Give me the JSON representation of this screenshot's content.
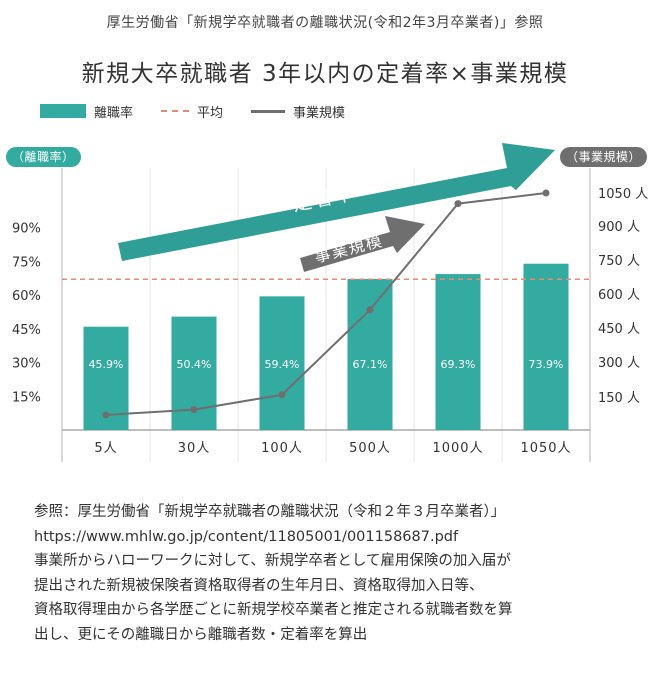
{
  "header": {
    "source_line": "厚生労働省「新規学卒就職者の離職状況(令和2年3月卒業者)」参照",
    "title": "新規大卒就職者 3年以内の定着率×事業規模"
  },
  "legend": {
    "items": [
      {
        "label": "離職率",
        "kind": "bar"
      },
      {
        "label": "平均",
        "kind": "dash"
      },
      {
        "label": "事業規模",
        "kind": "line"
      }
    ]
  },
  "axis_badges": {
    "left": "（離職率）",
    "right": "（事業規模）"
  },
  "colors": {
    "bar": "#33aba0",
    "arrow_teal": "#2f9e96",
    "line": "#6f6f6f",
    "average": "#e38b77",
    "badge_left": "#33aba0",
    "badge_right": "#6f6f6f"
  },
  "arrows": {
    "big_label": "定着率",
    "small_label": "事業規模"
  },
  "chart_data": {
    "type": "bar",
    "categories": [
      "5人",
      "30人",
      "100人",
      "500人",
      "1000人",
      "1050人"
    ],
    "series": [
      {
        "name": "離職率",
        "type": "bar",
        "axis": "left",
        "values": [
          45.9,
          50.4,
          59.4,
          67.1,
          69.3,
          73.9
        ],
        "labels": [
          "45.9%",
          "50.4%",
          "59.4%",
          "67.1%",
          "69.3%",
          "73.9%"
        ]
      },
      {
        "name": "事業規模",
        "type": "line",
        "axis": "right",
        "values": [
          5,
          30,
          100,
          500,
          1000,
          1050
        ]
      }
    ],
    "average_line": {
      "name": "平均",
      "value": 67
    },
    "y_left": {
      "label": "（離職率）",
      "ticks": [
        15,
        30,
        45,
        60,
        75,
        90
      ],
      "tick_labels": [
        "15%",
        "30%",
        "45%",
        "60%",
        "75%",
        "90%"
      ],
      "range": [
        0,
        100
      ]
    },
    "y_right": {
      "label": "（事業規模）",
      "ticks": [
        150,
        300,
        450,
        600,
        750,
        900,
        1050
      ],
      "tick_labels": [
        "150 人",
        "300 人",
        "450 人",
        "600 人",
        "750 人",
        "900 人",
        "1050 人"
      ],
      "range": [
        0,
        1050
      ]
    },
    "grid": true,
    "legend_position": "top-left"
  },
  "notes": {
    "lines": [
      "参照：厚生労働省「新規学卒就職者の離職状況（令和２年３月卒業者）」",
      "https://www.mhlw.go.jp/content/11805001/001158687.pdf",
      "事業所からハローワークに対して、新規学卒者として雇用保険の加入届が",
      "提出された新規被保険者資格取得者の生年月日、資格取得加入日等、",
      "資格取得理由から各学歴ごとに新規学校卒業者と推定される就職者数を算",
      "出し、更にその離職日から離職者数・定着率を算出"
    ]
  }
}
